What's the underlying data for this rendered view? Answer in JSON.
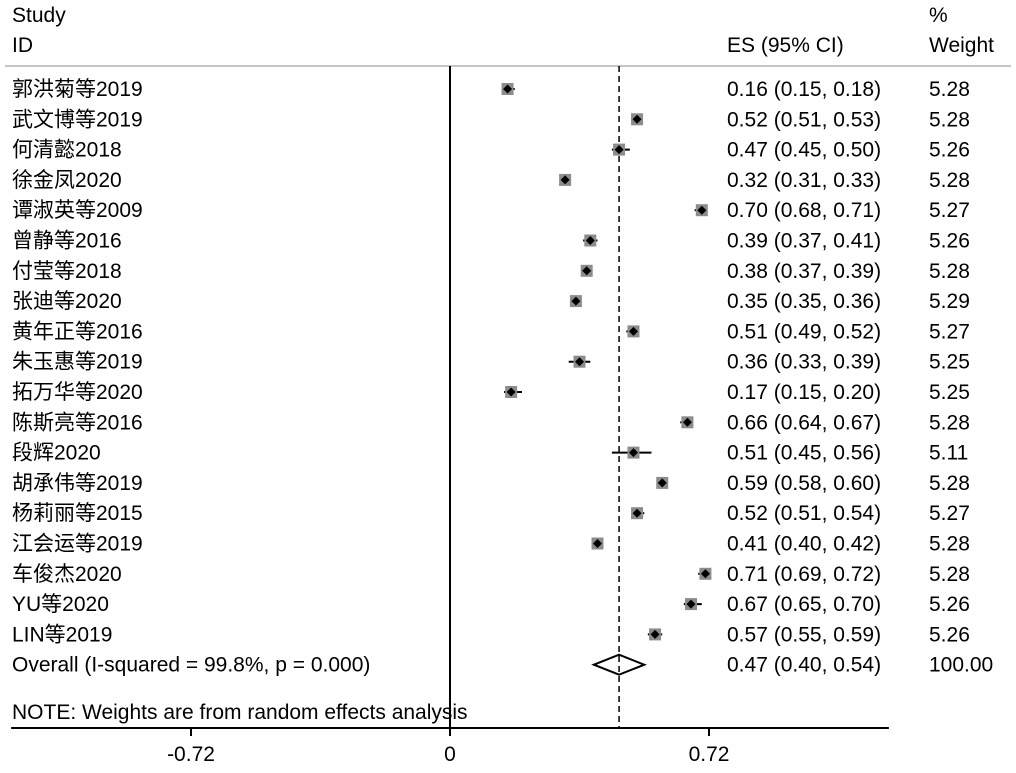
{
  "chart_data": {
    "type": "forest",
    "headers": {
      "study_line1": "Study",
      "study_line2": "ID",
      "es": "ES (95% CI)",
      "weight_line1": "%",
      "weight_line2": "Weight"
    },
    "studies": [
      {
        "id": "郭洪菊等2019",
        "es": 0.16,
        "lo": 0.15,
        "hi": 0.18,
        "es_text": "0.16 (0.15, 0.18)",
        "weight": "5.28"
      },
      {
        "id": "武文博等2019",
        "es": 0.52,
        "lo": 0.51,
        "hi": 0.53,
        "es_text": "0.52 (0.51, 0.53)",
        "weight": "5.28"
      },
      {
        "id": "何清懿2018",
        "es": 0.47,
        "lo": 0.45,
        "hi": 0.5,
        "es_text": "0.47 (0.45, 0.50)",
        "weight": "5.26"
      },
      {
        "id": "徐金凤2020",
        "es": 0.32,
        "lo": 0.31,
        "hi": 0.33,
        "es_text": "0.32 (0.31, 0.33)",
        "weight": "5.28"
      },
      {
        "id": "谭淑英等2009",
        "es": 0.7,
        "lo": 0.68,
        "hi": 0.71,
        "es_text": "0.70 (0.68, 0.71)",
        "weight": "5.27"
      },
      {
        "id": "曾静等2016",
        "es": 0.39,
        "lo": 0.37,
        "hi": 0.41,
        "es_text": "0.39 (0.37, 0.41)",
        "weight": "5.26"
      },
      {
        "id": "付莹等2018",
        "es": 0.38,
        "lo": 0.37,
        "hi": 0.39,
        "es_text": "0.38 (0.37, 0.39)",
        "weight": "5.28"
      },
      {
        "id": "张迪等2020",
        "es": 0.35,
        "lo": 0.35,
        "hi": 0.36,
        "es_text": "0.35 (0.35, 0.36)",
        "weight": "5.29"
      },
      {
        "id": "黄年正等2016",
        "es": 0.51,
        "lo": 0.49,
        "hi": 0.52,
        "es_text": "0.51 (0.49, 0.52)",
        "weight": "5.27"
      },
      {
        "id": "朱玉惠等2019",
        "es": 0.36,
        "lo": 0.33,
        "hi": 0.39,
        "es_text": "0.36 (0.33, 0.39)",
        "weight": "5.25"
      },
      {
        "id": "拓万华等2020",
        "es": 0.17,
        "lo": 0.15,
        "hi": 0.2,
        "es_text": "0.17 (0.15, 0.20)",
        "weight": "5.25"
      },
      {
        "id": "陈斯亮等2016",
        "es": 0.66,
        "lo": 0.64,
        "hi": 0.67,
        "es_text": "0.66 (0.64, 0.67)",
        "weight": "5.28"
      },
      {
        "id": "段辉2020",
        "es": 0.51,
        "lo": 0.45,
        "hi": 0.56,
        "es_text": "0.51 (0.45, 0.56)",
        "weight": "5.11"
      },
      {
        "id": "胡承伟等2019",
        "es": 0.59,
        "lo": 0.58,
        "hi": 0.6,
        "es_text": "0.59 (0.58, 0.60)",
        "weight": "5.28"
      },
      {
        "id": "杨莉丽等2015",
        "es": 0.52,
        "lo": 0.51,
        "hi": 0.54,
        "es_text": "0.52 (0.51, 0.54)",
        "weight": "5.27"
      },
      {
        "id": "江会运等2019",
        "es": 0.41,
        "lo": 0.4,
        "hi": 0.42,
        "es_text": "0.41 (0.40, 0.42)",
        "weight": "5.28"
      },
      {
        "id": "车俊杰2020",
        "es": 0.71,
        "lo": 0.69,
        "hi": 0.72,
        "es_text": "0.71 (0.69, 0.72)",
        "weight": "5.28"
      },
      {
        "id": "YU等2020",
        "es": 0.67,
        "lo": 0.65,
        "hi": 0.7,
        "es_text": "0.67 (0.65, 0.70)",
        "weight": "5.26"
      },
      {
        "id": "LIN等2019",
        "es": 0.57,
        "lo": 0.55,
        "hi": 0.59,
        "es_text": "0.57 (0.55, 0.59)",
        "weight": "5.26"
      }
    ],
    "overall": {
      "label": "Overall  (I-squared = 99.8%, p = 0.000)",
      "es": 0.47,
      "lo": 0.4,
      "hi": 0.54,
      "es_text": "0.47 (0.40, 0.54)",
      "weight": "100.00"
    },
    "note": "NOTE: Weights are from random effects analysis",
    "x_ticks": [
      {
        "value": -0.72,
        "label": "-0.72"
      },
      {
        "value": 0,
        "label": "0"
      },
      {
        "value": 0.72,
        "label": "0.72"
      }
    ],
    "xlim": [
      -1.22,
      1.22
    ],
    "null_line": 0,
    "grid": false
  }
}
